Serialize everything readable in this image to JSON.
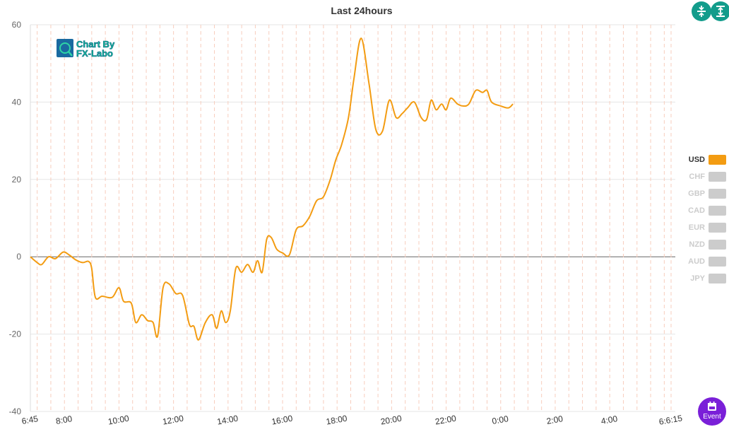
{
  "chart_data": {
    "type": "line",
    "title": "Last 24hours",
    "ylim": [
      -40,
      60
    ],
    "y_ticks": [
      "60",
      "40",
      "20",
      "0",
      "-20",
      "-40"
    ],
    "x_ticks": [
      "6:45",
      "8:00",
      "10:00",
      "12:00",
      "14:00",
      "16:00",
      "18:00",
      "20:00",
      "22:00",
      "0:00",
      "2:00",
      "4:00",
      "6:6:15"
    ],
    "xlim_minutes": [
      0,
      1410
    ],
    "grid": true,
    "series": [
      {
        "name": "USD",
        "color": "#f39c12",
        "points": [
          [
            0,
            0
          ],
          [
            15,
            -1.5
          ],
          [
            25,
            -2
          ],
          [
            40,
            0
          ],
          [
            55,
            -0.5
          ],
          [
            72,
            1.2
          ],
          [
            85,
            0.5
          ],
          [
            100,
            -0.8
          ],
          [
            115,
            -1.5
          ],
          [
            128,
            -1.2
          ],
          [
            135,
            -3
          ],
          [
            143,
            -10.5
          ],
          [
            158,
            -10.2
          ],
          [
            180,
            -10.5
          ],
          [
            195,
            -8
          ],
          [
            205,
            -11.5
          ],
          [
            222,
            -12
          ],
          [
            232,
            -17
          ],
          [
            245,
            -15
          ],
          [
            258,
            -16.5
          ],
          [
            270,
            -17
          ],
          [
            280,
            -20.5
          ],
          [
            292,
            -8
          ],
          [
            305,
            -7
          ],
          [
            320,
            -9.5
          ],
          [
            335,
            -10
          ],
          [
            350,
            -17.5
          ],
          [
            360,
            -18
          ],
          [
            370,
            -21.5
          ],
          [
            385,
            -17
          ],
          [
            400,
            -15
          ],
          [
            410,
            -18.5
          ],
          [
            420,
            -14
          ],
          [
            430,
            -17
          ],
          [
            440,
            -14
          ],
          [
            452,
            -3
          ],
          [
            465,
            -4
          ],
          [
            478,
            -2
          ],
          [
            490,
            -4
          ],
          [
            500,
            -1
          ],
          [
            510,
            -4
          ],
          [
            520,
            4.5
          ],
          [
            530,
            5
          ],
          [
            542,
            2
          ],
          [
            555,
            1
          ],
          [
            570,
            0.5
          ],
          [
            585,
            7
          ],
          [
            600,
            8
          ],
          [
            615,
            10.5
          ],
          [
            630,
            14.5
          ],
          [
            645,
            15.5
          ],
          [
            660,
            20
          ],
          [
            672,
            25
          ],
          [
            685,
            29
          ],
          [
            700,
            36
          ],
          [
            712,
            46
          ],
          [
            728,
            56.5
          ],
          [
            745,
            45
          ],
          [
            760,
            33
          ],
          [
            775,
            32.5
          ],
          [
            790,
            40.5
          ],
          [
            805,
            36
          ],
          [
            818,
            37
          ],
          [
            830,
            38.5
          ],
          [
            845,
            40
          ],
          [
            860,
            36
          ],
          [
            872,
            35.5
          ],
          [
            882,
            40.5
          ],
          [
            893,
            38
          ],
          [
            905,
            39.5
          ],
          [
            915,
            38
          ],
          [
            925,
            41
          ],
          [
            940,
            39.5
          ],
          [
            952,
            39
          ],
          [
            965,
            39.5
          ],
          [
            980,
            43
          ],
          [
            995,
            42.5
          ],
          [
            1005,
            43
          ],
          [
            1015,
            40
          ],
          [
            1035,
            39
          ],
          [
            1052,
            38.5
          ],
          [
            1062,
            39.5
          ]
        ]
      },
      {
        "name": "CHF",
        "color": "#cccccc",
        "points": []
      },
      {
        "name": "GBP",
        "color": "#cccccc",
        "points": []
      },
      {
        "name": "CAD",
        "color": "#cccccc",
        "points": []
      },
      {
        "name": "EUR",
        "color": "#cccccc",
        "points": []
      },
      {
        "name": "NZD",
        "color": "#cccccc",
        "points": []
      },
      {
        "name": "AUD",
        "color": "#cccccc",
        "points": []
      },
      {
        "name": "JPY",
        "color": "#cccccc",
        "points": []
      }
    ],
    "legend": {
      "placement": "right",
      "active_label_color": "#333333",
      "inactive_label_color": "#cccccc",
      "active": [
        "USD"
      ]
    }
  },
  "logo": {
    "line1": "Chart By",
    "line2": "FX-Labo"
  },
  "controls": {
    "event_label": "Event"
  },
  "icons": {
    "collapse": "collapse-vertical-icon",
    "expand": "expand-vertical-icon",
    "event": "calendar-icon"
  },
  "colors": {
    "control_green": "#129c8b",
    "event_purple": "#7a1fd8",
    "grid": "#e6e6e6",
    "vgrid": "#f7cdbd"
  }
}
